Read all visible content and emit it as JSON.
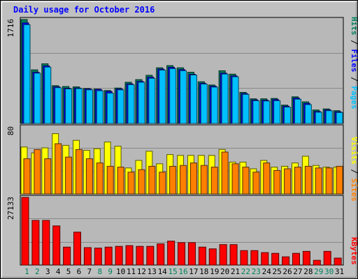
{
  "title": "Daily usage for October 2016",
  "colors": {
    "hits": "#00805c",
    "files": "#0000ff",
    "pages": "#00c0ff",
    "visits": "#ffff00",
    "sites": "#ff8000",
    "kbytes": "#ff0000",
    "weekday_label": "#000000",
    "weekend_label": "#00805c"
  },
  "chart_data": [
    {
      "type": "bar",
      "categories": [
        "1",
        "2",
        "3",
        "4",
        "5",
        "6",
        "7",
        "8",
        "9",
        "10",
        "11",
        "12",
        "13",
        "14",
        "15",
        "16",
        "17",
        "18",
        "19",
        "20",
        "21",
        "22",
        "23",
        "24",
        "25",
        "26",
        "27",
        "28",
        "29",
        "30",
        "31"
      ],
      "weekend_days": [
        "1",
        "2",
        "8",
        "9",
        "15",
        "16",
        "22",
        "23",
        "29",
        "30"
      ],
      "ymax_label": "1716",
      "ylim": [
        0,
        1716
      ],
      "legend": [
        {
          "text": "Pages",
          "color": "#00c0ff"
        },
        {
          "text": " / ",
          "color": "#000000"
        },
        {
          "text": "Files",
          "color": "#0000ff"
        },
        {
          "text": " / ",
          "color": "#000000"
        },
        {
          "text": "Hits",
          "color": "#00805c"
        }
      ],
      "series": [
        {
          "name": "Hits",
          "values": [
            1716,
            885,
            985,
            624,
            610,
            604,
            577,
            568,
            544,
            585,
            680,
            724,
            795,
            919,
            955,
            919,
            846,
            689,
            635,
            870,
            814,
            513,
            407,
            407,
            413,
            303,
            440,
            357,
            222,
            240,
            211
          ]
        },
        {
          "name": "Files",
          "values": [
            1660,
            846,
            951,
            605,
            582,
            585,
            570,
            562,
            528,
            570,
            654,
            695,
            764,
            897,
            927,
            889,
            812,
            664,
            616,
            831,
            786,
            495,
            389,
            385,
            394,
            285,
            419,
            332,
            199,
            224,
            193
          ]
        },
        {
          "name": "Pages",
          "values": [
            1630,
            830,
            930,
            590,
            570,
            575,
            555,
            540,
            500,
            555,
            640,
            680,
            745,
            880,
            905,
            870,
            800,
            650,
            600,
            815,
            770,
            480,
            375,
            370,
            375,
            270,
            400,
            310,
            185,
            210,
            180
          ]
        }
      ]
    },
    {
      "type": "bar",
      "categories": [
        "1",
        "2",
        "3",
        "4",
        "5",
        "6",
        "7",
        "8",
        "9",
        "10",
        "11",
        "12",
        "13",
        "14",
        "15",
        "16",
        "17",
        "18",
        "19",
        "20",
        "21",
        "22",
        "23",
        "24",
        "25",
        "26",
        "27",
        "28",
        "29",
        "30",
        "31"
      ],
      "ymax_label": "80",
      "ylim": [
        0,
        80
      ],
      "legend": [
        {
          "text": "Sites",
          "color": "#ff8000"
        },
        {
          "text": " / ",
          "color": "#000000"
        },
        {
          "text": "Visits",
          "color": "#ffff00"
        }
      ],
      "series": [
        {
          "name": "Visits",
          "values": [
            56,
            49,
            55,
            72,
            58,
            64,
            52,
            54,
            62,
            57,
            31,
            40,
            51,
            36,
            47,
            46,
            46,
            46,
            46,
            53,
            38,
            38,
            30,
            40,
            32,
            33,
            37,
            45,
            34,
            32,
            32
          ]
        },
        {
          "name": "Sites",
          "values": [
            42,
            53,
            42,
            60,
            44,
            53,
            42,
            37,
            33,
            32,
            26,
            29,
            33,
            26,
            33,
            34,
            37,
            34,
            32,
            50,
            36,
            32,
            26,
            37,
            28,
            30,
            32,
            33,
            31,
            31,
            33
          ]
        }
      ]
    },
    {
      "type": "bar",
      "categories": [
        "1",
        "2",
        "3",
        "4",
        "5",
        "6",
        "7",
        "8",
        "9",
        "10",
        "11",
        "12",
        "13",
        "14",
        "15",
        "16",
        "17",
        "18",
        "19",
        "20",
        "21",
        "22",
        "23",
        "24",
        "25",
        "26",
        "27",
        "28",
        "29",
        "30",
        "31"
      ],
      "ymax_label": "27133",
      "ylim": [
        0,
        27133
      ],
      "legend": [
        {
          "text": "KBytes",
          "color": "#ff0000"
        }
      ],
      "series": [
        {
          "name": "KBytes",
          "values": [
            27133,
            17900,
            17900,
            15700,
            7200,
            13200,
            7000,
            6800,
            7200,
            7500,
            7800,
            7500,
            7500,
            8500,
            9600,
            9000,
            9000,
            7200,
            6500,
            8200,
            8200,
            5800,
            5800,
            5000,
            4700,
            3300,
            4700,
            5500,
            1900,
            5500,
            2800
          ]
        }
      ]
    }
  ]
}
